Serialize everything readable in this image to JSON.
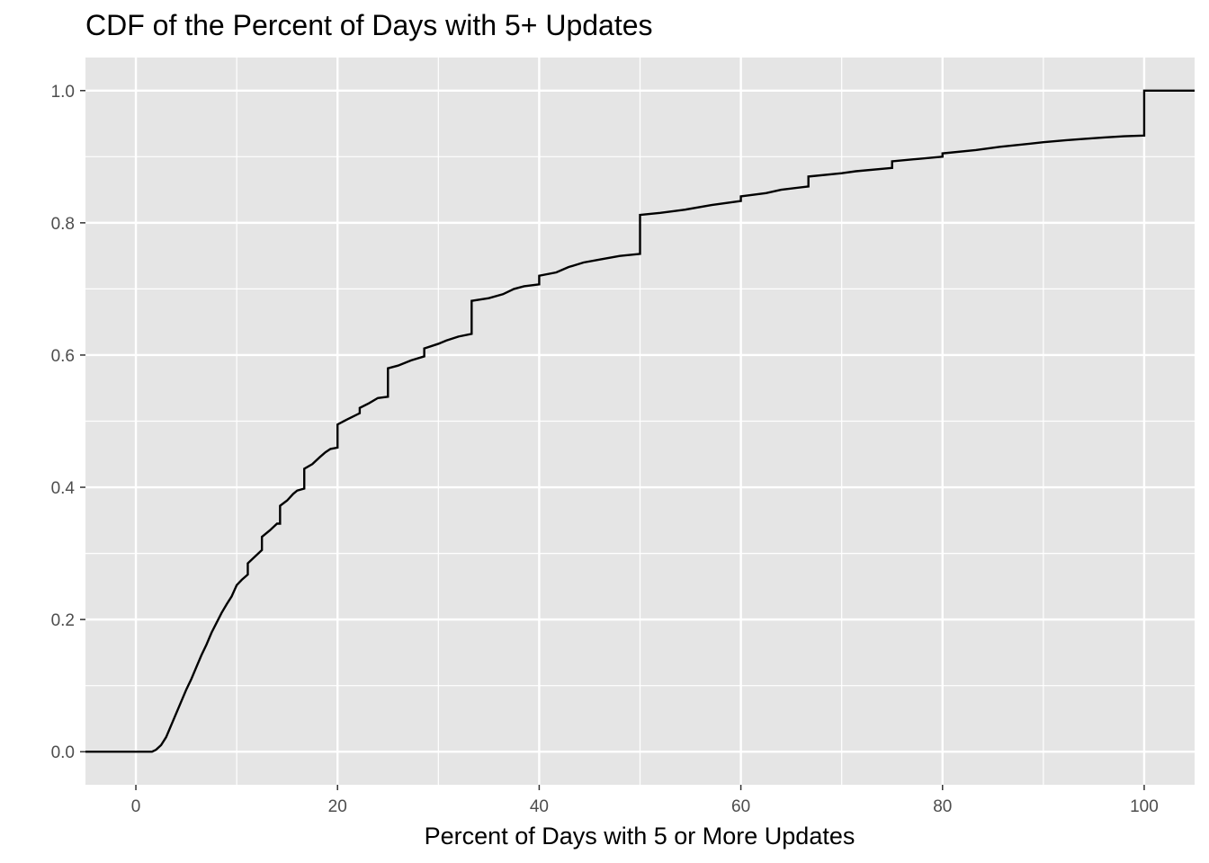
{
  "chart_data": {
    "type": "line",
    "subtype": "step-ecdf",
    "title": "CDF of the Percent of Days with 5+ Updates",
    "xlabel": "Percent of Days with 5 or More Updates",
    "ylabel": "",
    "xlim": [
      -5,
      105
    ],
    "ylim": [
      -0.05,
      1.05
    ],
    "x_ticks": [
      0,
      20,
      40,
      60,
      80,
      100
    ],
    "x_tick_labels": [
      "0",
      "20",
      "40",
      "60",
      "80",
      "100"
    ],
    "y_ticks": [
      0,
      0.2,
      0.4,
      0.6,
      0.8,
      1.0
    ],
    "y_tick_labels": [
      "0.0",
      "0.2",
      "0.4",
      "0.6",
      "0.8",
      "1.0"
    ],
    "grid": true,
    "legend": "none",
    "colors": {
      "panel_background": "#e5e5e5",
      "grid": "#ffffff",
      "line": "#000000"
    },
    "series": [
      {
        "points": [
          [
            -5,
            0.0
          ],
          [
            1.6,
            0.0
          ],
          [
            2.0,
            0.003
          ],
          [
            2.5,
            0.01
          ],
          [
            3.0,
            0.022
          ],
          [
            3.5,
            0.04
          ],
          [
            4.0,
            0.058
          ],
          [
            4.5,
            0.076
          ],
          [
            5.0,
            0.094
          ],
          [
            5.5,
            0.11
          ],
          [
            6.0,
            0.128
          ],
          [
            6.5,
            0.146
          ],
          [
            7.0,
            0.162
          ],
          [
            7.5,
            0.18
          ],
          [
            8.0,
            0.195
          ],
          [
            8.5,
            0.21
          ],
          [
            9.0,
            0.223
          ],
          [
            9.5,
            0.235
          ],
          [
            10.0,
            0.252
          ],
          [
            10.5,
            0.26
          ],
          [
            11.1,
            0.268
          ],
          [
            11.1,
            0.285
          ],
          [
            11.8,
            0.295
          ],
          [
            12.5,
            0.305
          ],
          [
            12.5,
            0.325
          ],
          [
            13.3,
            0.335
          ],
          [
            14.0,
            0.345
          ],
          [
            14.3,
            0.345
          ],
          [
            14.3,
            0.372
          ],
          [
            15.0,
            0.38
          ],
          [
            15.6,
            0.39
          ],
          [
            16.0,
            0.395
          ],
          [
            16.7,
            0.398
          ],
          [
            16.7,
            0.428
          ],
          [
            17.5,
            0.435
          ],
          [
            18.2,
            0.445
          ],
          [
            18.8,
            0.453
          ],
          [
            19.3,
            0.458
          ],
          [
            20.0,
            0.46
          ],
          [
            20.0,
            0.495
          ],
          [
            21.0,
            0.503
          ],
          [
            22.2,
            0.512
          ],
          [
            22.2,
            0.52
          ],
          [
            23.1,
            0.527
          ],
          [
            24.0,
            0.535
          ],
          [
            25.0,
            0.537
          ],
          [
            25.0,
            0.58
          ],
          [
            26.0,
            0.584
          ],
          [
            27.3,
            0.592
          ],
          [
            28.6,
            0.598
          ],
          [
            28.6,
            0.61
          ],
          [
            30.0,
            0.617
          ],
          [
            30.8,
            0.622
          ],
          [
            32.0,
            0.628
          ],
          [
            33.3,
            0.632
          ],
          [
            33.3,
            0.682
          ],
          [
            35.0,
            0.686
          ],
          [
            36.4,
            0.692
          ],
          [
            37.5,
            0.7
          ],
          [
            38.5,
            0.704
          ],
          [
            40.0,
            0.707
          ],
          [
            40.0,
            0.72
          ],
          [
            41.7,
            0.725
          ],
          [
            42.9,
            0.733
          ],
          [
            44.4,
            0.74
          ],
          [
            46.2,
            0.745
          ],
          [
            48.0,
            0.75
          ],
          [
            50.0,
            0.753
          ],
          [
            50.0,
            0.812
          ],
          [
            52.0,
            0.815
          ],
          [
            54.5,
            0.82
          ],
          [
            57.1,
            0.827
          ],
          [
            60.0,
            0.833
          ],
          [
            60.0,
            0.84
          ],
          [
            62.5,
            0.845
          ],
          [
            64.0,
            0.85
          ],
          [
            66.7,
            0.855
          ],
          [
            66.7,
            0.87
          ],
          [
            70.0,
            0.875
          ],
          [
            71.4,
            0.878
          ],
          [
            75.0,
            0.883
          ],
          [
            75.0,
            0.893
          ],
          [
            77.8,
            0.897
          ],
          [
            80.0,
            0.9
          ],
          [
            80.0,
            0.905
          ],
          [
            83.3,
            0.91
          ],
          [
            85.7,
            0.915
          ],
          [
            88.9,
            0.92
          ],
          [
            90.0,
            0.922
          ],
          [
            92.3,
            0.925
          ],
          [
            94.1,
            0.927
          ],
          [
            96.0,
            0.929
          ],
          [
            98.0,
            0.931
          ],
          [
            100.0,
            0.932
          ],
          [
            100.0,
            1.0
          ],
          [
            105.0,
            1.0
          ]
        ]
      }
    ]
  }
}
